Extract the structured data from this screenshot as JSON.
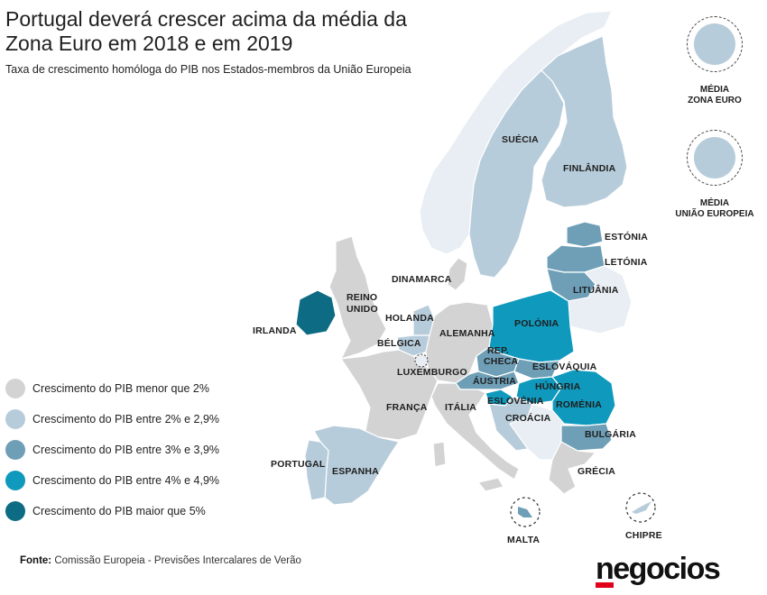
{
  "title": "Portugal deverá crescer acima da média da Zona Euro em 2018 e em 2019",
  "subtitle": "Taxa de crescimento homóloga do PIB nos Estados-membros da União Europeia",
  "legend": [
    {
      "label": "Crescimento do PIB menor que 2%",
      "color": "#d3d3d3"
    },
    {
      "label": "Crescimento do PIB entre 2% e 2,9%",
      "color": "#b7ccda"
    },
    {
      "label": "Crescimento do PIB entre 3% e 3,9%",
      "color": "#6e9fb7"
    },
    {
      "label": "Crescimento do PIB entre 4% e 4,9%",
      "color": "#0f99bd"
    },
    {
      "label": "Crescimento do PIB maior que 5%",
      "color": "#0d6b83"
    }
  ],
  "averages": [
    {
      "label": "MÉDIA\nZONA EURO",
      "color": "#b7ccda"
    },
    {
      "label": "MÉDIA\nUNIÃO EUROPEIA",
      "color": "#b7ccda"
    }
  ],
  "countries": {
    "suecia": "SUÉCIA",
    "finlandia": "FINLÂNDIA",
    "estonia": "ESTÓNIA",
    "letonia": "LETÓNIA",
    "lituania": "LITUÂNIA",
    "dinamarca": "DINAMARCA",
    "reino_unido_1": "REINO",
    "reino_unido_2": "UNIDO",
    "irlanda": "IRLANDA",
    "holanda": "HOLANDA",
    "belgica": "BÉLGICA",
    "luxemburgo": "LUXEMBURGO",
    "alemanha": "ALEMANHA",
    "polonia": "POLÓNIA",
    "rep_checa_1": "REP.",
    "rep_checa_2": "CHECA",
    "eslovaquia": "ESLOVÁQUIA",
    "austria": "ÁUSTRIA",
    "hungria": "HÚNGRIA",
    "eslovenia": "ESLOVÉNIA",
    "romenia": "ROMÉNIA",
    "croacia": "CROÁCIA",
    "franca": "FRANÇA",
    "italia": "ITÁLIA",
    "bulgaria": "BULGÁRIA",
    "portugal": "PORTUGAL",
    "espanha": "ESPANHA",
    "grecia": "GRÉCIA",
    "malta": "MALTA",
    "chipre": "CHIPRE"
  },
  "source_label": "Fonte:",
  "source_text": "Comissão Europeia - Previsões Intercalares de Verão",
  "logo": "negocios"
}
